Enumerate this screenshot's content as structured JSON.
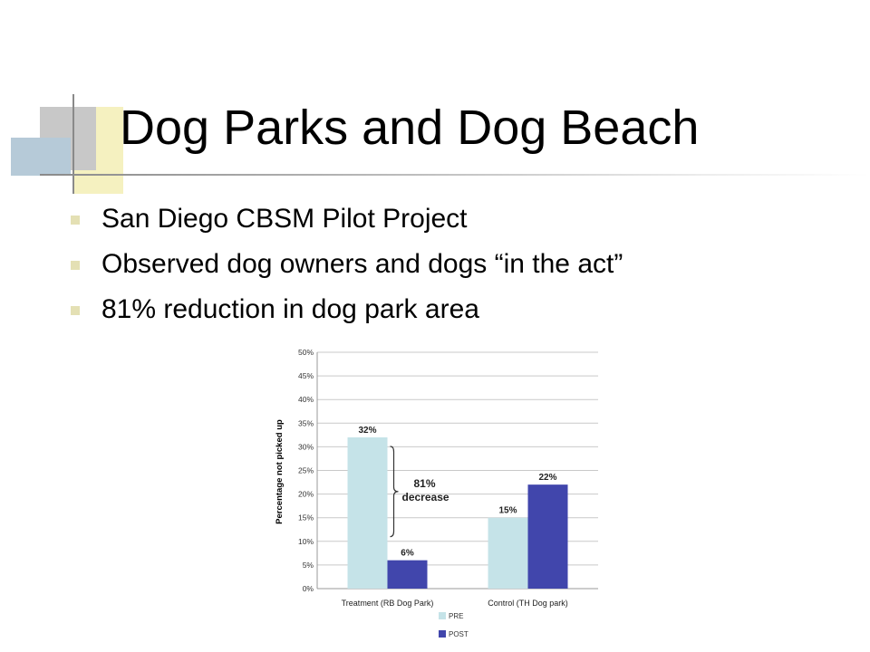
{
  "slide": {
    "title": "Dog Parks and Dog Beach",
    "bullets": [
      "San Diego CBSM Pilot Project",
      "Observed dog owners and dogs “in the act”",
      "81% reduction in dog park area"
    ]
  },
  "colors": {
    "deco_yellow": "#f5f1c0",
    "deco_gray": "#c8c8c8",
    "deco_blue": "#b6cad8",
    "deco_line": "#8a8a8a",
    "bullet_mark": "#e4e0b4"
  },
  "chart_data": {
    "type": "bar",
    "categories": [
      "Treatment (RB Dog Park)",
      "Control (TH Dog park)"
    ],
    "series": [
      {
        "name": "PRE",
        "values": [
          32,
          15
        ],
        "labels": [
          "32%",
          "15%"
        ],
        "color": "#c5e3e8"
      },
      {
        "name": "POST",
        "values": [
          6,
          22
        ],
        "labels": [
          "6%",
          "22%"
        ],
        "color": "#4146ac"
      }
    ],
    "ylabel": "Percentage not picked up",
    "ylim": [
      0,
      50
    ],
    "yticks": [
      0,
      5,
      10,
      15,
      20,
      25,
      30,
      35,
      40,
      45,
      50
    ],
    "ytick_labels": [
      "0%",
      "5%",
      "10%",
      "15%",
      "20%",
      "25%",
      "30%",
      "35%",
      "40%",
      "45%",
      "50%"
    ],
    "grid": true,
    "legend_position": "bottom",
    "annotation": {
      "lines": [
        "81%",
        "decrease"
      ],
      "from": 32,
      "to": 6
    }
  }
}
